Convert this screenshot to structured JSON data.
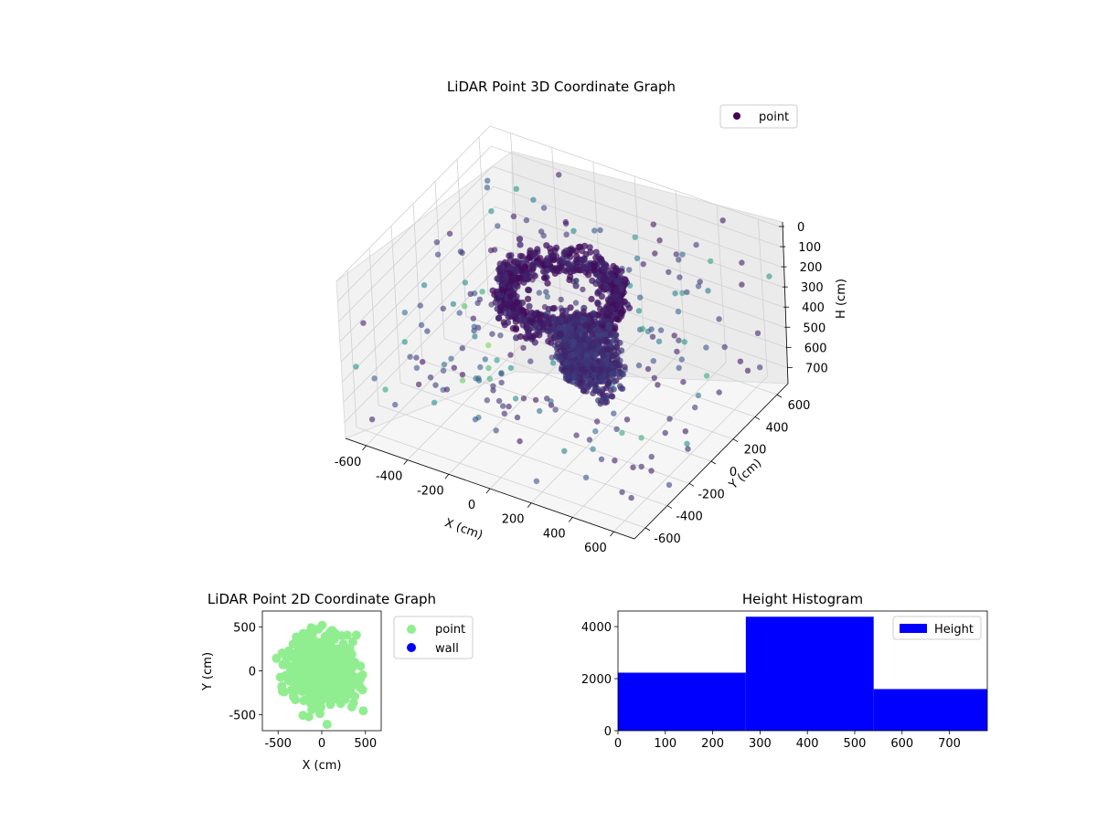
{
  "chart_data": [
    {
      "type": "scatter3d",
      "title": "LiDAR Point 3D Coordinate Graph",
      "xlabel": "X (cm)",
      "ylabel": "Y (cm)",
      "zlabel": "H (cm)",
      "x_ticks": [
        -600,
        -400,
        -200,
        0,
        200,
        400,
        600
      ],
      "y_ticks": [
        -600,
        -400,
        -200,
        0,
        200,
        400,
        600
      ],
      "z_ticks": [
        0,
        100,
        200,
        300,
        400,
        500,
        600,
        700
      ],
      "xlim": [
        -700,
        700
      ],
      "ylim": [
        -700,
        700
      ],
      "zlim": [
        0,
        780
      ],
      "z_inverted": true,
      "colormap": "viridis",
      "legend": {
        "entries": [
          "point"
        ],
        "placement": "top-right",
        "colors": [
          "#440154"
        ]
      },
      "grid": true
    },
    {
      "type": "scatter",
      "title": "LiDAR Point 2D Coordinate Graph",
      "xlabel": "X (cm)",
      "ylabel": "Y (cm)",
      "x_ticks": [
        -500,
        0,
        500
      ],
      "y_ticks": [
        -500,
        0,
        500
      ],
      "xlim": [
        -680,
        680
      ],
      "ylim": [
        -680,
        680
      ],
      "series": [
        {
          "name": "point",
          "color": "#90ee90"
        },
        {
          "name": "wall",
          "color": "#0000ff"
        }
      ],
      "legend": {
        "placement": "outside-right"
      }
    },
    {
      "type": "bar",
      "title": "Height Histogram",
      "bins": [
        {
          "start": 0,
          "end": 270,
          "count": 2230
        },
        {
          "start": 270,
          "end": 540,
          "count": 4380
        },
        {
          "start": 540,
          "end": 780,
          "count": 1600
        }
      ],
      "x_ticks": [
        0,
        100,
        200,
        300,
        400,
        500,
        600,
        700
      ],
      "y_ticks": [
        0,
        2000,
        4000
      ],
      "xlim": [
        0,
        780
      ],
      "ylim": [
        0,
        4600
      ],
      "series": [
        {
          "name": "Height",
          "color": "#0000ff"
        }
      ],
      "legend": {
        "placement": "top-right"
      }
    }
  ]
}
